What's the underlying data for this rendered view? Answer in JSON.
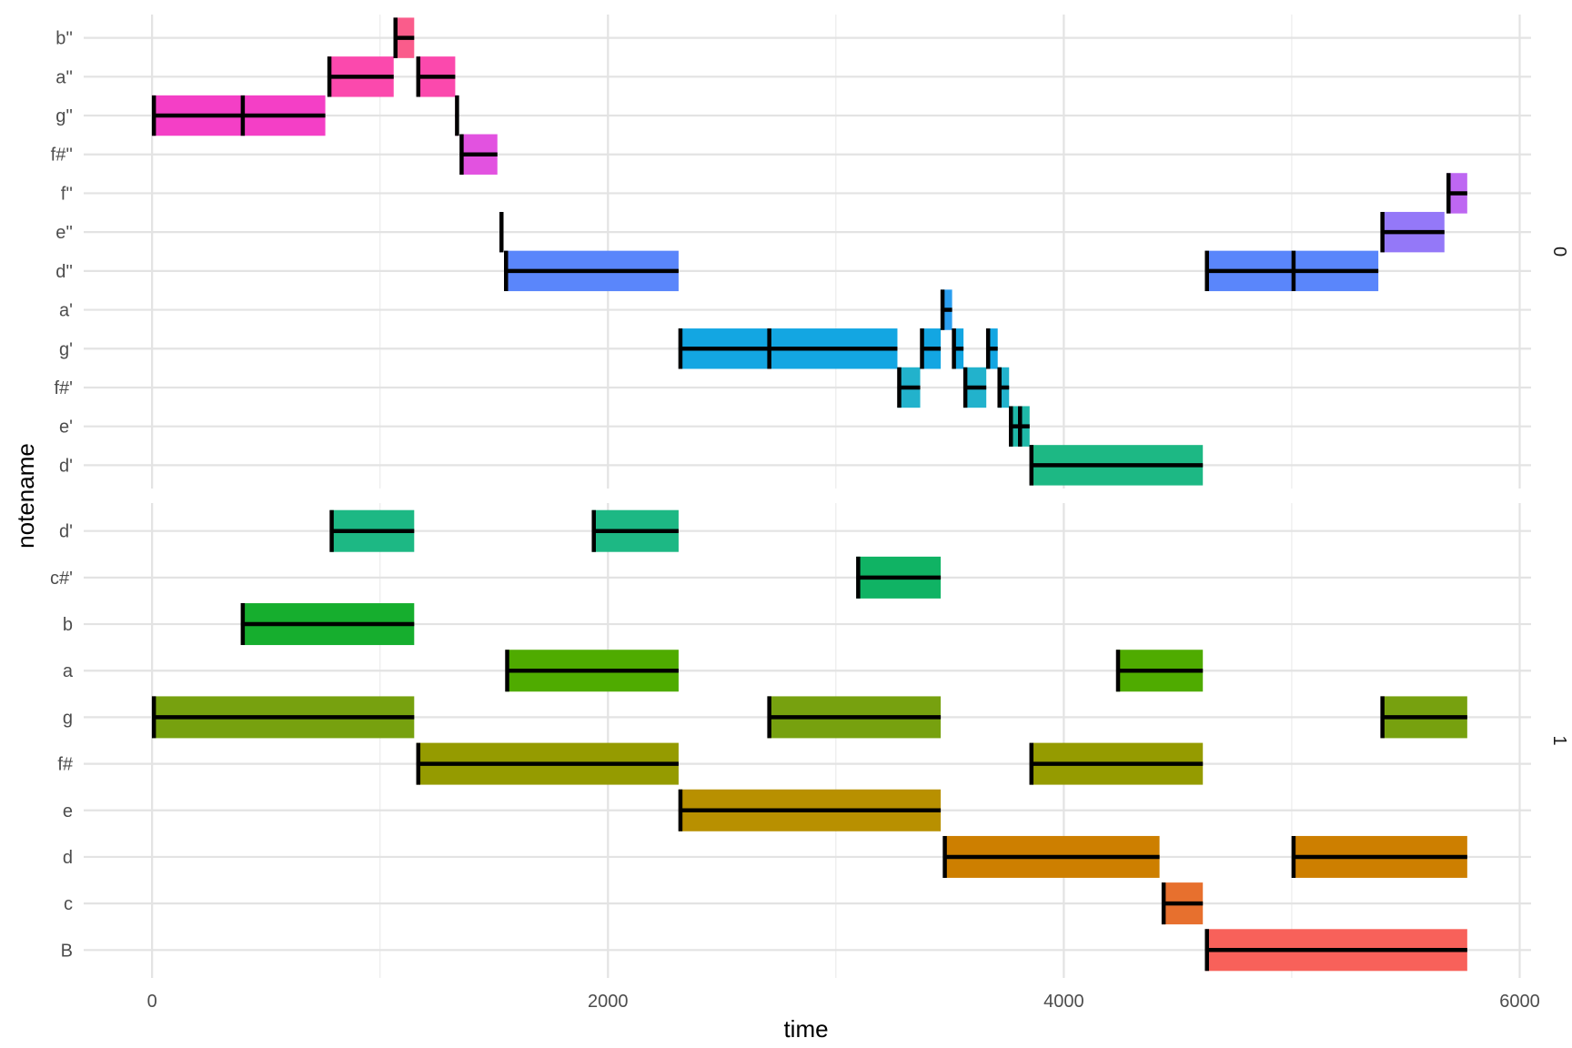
{
  "chart_data": {
    "type": "piano-roll",
    "xlabel": "time",
    "ylabel": "notename",
    "xlim": [
      -300,
      6050
    ],
    "xticks": [
      0,
      2000,
      4000,
      6000
    ],
    "xminor": [
      1000,
      3000,
      5000
    ],
    "grid": true,
    "facets": [
      {
        "strip": "0",
        "notes": [
          "d'",
          "e'",
          "f#'",
          "g'",
          "a'",
          "d''",
          "e''",
          "f''",
          "f#''",
          "g''",
          "a''",
          "b''"
        ],
        "colors": [
          "#1db884",
          "#1fb8a8",
          "#22b2cc",
          "#13a6e2",
          "#2a9ef0",
          "#5a86fb",
          "#9478f8",
          "#be67f2",
          "#e252e0",
          "#f43fc6",
          "#fb49ad",
          "#fa5c8b"
        ],
        "events": [
          {
            "note": "g''",
            "start": 0,
            "end": 760,
            "marks": [
              0,
              390
            ]
          },
          {
            "note": "a''",
            "start": 770,
            "end": 1060,
            "marks": [
              770
            ]
          },
          {
            "note": "b''",
            "start": 1060,
            "end": 1150,
            "marks": [
              1060
            ]
          },
          {
            "note": "a''",
            "start": 1160,
            "end": 1330,
            "marks": [
              1160
            ]
          },
          {
            "note": "g''",
            "start": 1330,
            "end": 1345,
            "marks": [
              1330
            ]
          },
          {
            "note": "f#''",
            "start": 1350,
            "end": 1515,
            "marks": [
              1350
            ]
          },
          {
            "note": "e''",
            "start": 1525,
            "end": 1535,
            "marks": [
              1525
            ]
          },
          {
            "note": "d''",
            "start": 1545,
            "end": 2310,
            "marks": [
              1545
            ]
          },
          {
            "note": "g'",
            "start": 2310,
            "end": 3270,
            "marks": [
              2310,
              2700
            ]
          },
          {
            "note": "f#'",
            "start": 3270,
            "end": 3370,
            "marks": [
              3270
            ]
          },
          {
            "note": "g'",
            "start": 3370,
            "end": 3460,
            "marks": [
              3370
            ]
          },
          {
            "note": "a'",
            "start": 3460,
            "end": 3510,
            "marks": [
              3460
            ]
          },
          {
            "note": "g'",
            "start": 3510,
            "end": 3560,
            "marks": [
              3510
            ]
          },
          {
            "note": "f#'",
            "start": 3560,
            "end": 3660,
            "marks": [
              3560
            ]
          },
          {
            "note": "g'",
            "start": 3660,
            "end": 3710,
            "marks": [
              3660
            ]
          },
          {
            "note": "f#'",
            "start": 3710,
            "end": 3760,
            "marks": [
              3710
            ]
          },
          {
            "note": "e'",
            "start": 3760,
            "end": 3850,
            "marks": [
              3760,
              3800
            ]
          },
          {
            "note": "d'",
            "start": 3850,
            "end": 4610,
            "marks": [
              3850
            ]
          },
          {
            "note": "d''",
            "start": 4620,
            "end": 5380,
            "marks": [
              4620,
              5000
            ]
          },
          {
            "note": "e''",
            "start": 5390,
            "end": 5670,
            "marks": [
              5390
            ]
          },
          {
            "note": "f''",
            "start": 5680,
            "end": 5770,
            "marks": [
              5680
            ]
          }
        ]
      },
      {
        "strip": "1",
        "notes": [
          "B",
          "c",
          "d",
          "e",
          "f#",
          "g",
          "a",
          "b",
          "c#'",
          "d'"
        ],
        "colors": [
          "#f8615a",
          "#e7702e",
          "#cd7f00",
          "#b89000",
          "#959b00",
          "#77a10f",
          "#4fab00",
          "#16ae2e",
          "#10b364",
          "#1db884"
        ],
        "events": [
          {
            "note": "g",
            "start": 0,
            "end": 1150,
            "marks": [
              0
            ]
          },
          {
            "note": "b",
            "start": 390,
            "end": 1150,
            "marks": [
              390
            ]
          },
          {
            "note": "d'",
            "start": 780,
            "end": 1150,
            "marks": [
              780
            ]
          },
          {
            "note": "f#",
            "start": 1160,
            "end": 2310,
            "marks": [
              1160
            ]
          },
          {
            "note": "a",
            "start": 1550,
            "end": 2310,
            "marks": [
              1550
            ]
          },
          {
            "note": "d'",
            "start": 1930,
            "end": 2310,
            "marks": [
              1930
            ]
          },
          {
            "note": "e",
            "start": 2310,
            "end": 3460,
            "marks": [
              2310
            ]
          },
          {
            "note": "g",
            "start": 2700,
            "end": 3460,
            "marks": [
              2700
            ]
          },
          {
            "note": "c#'",
            "start": 3090,
            "end": 3460,
            "marks": [
              3090
            ]
          },
          {
            "note": "d",
            "start": 3470,
            "end": 4420,
            "marks": [
              3470
            ]
          },
          {
            "note": "f#",
            "start": 3850,
            "end": 4610,
            "marks": [
              3850
            ]
          },
          {
            "note": "a",
            "start": 4230,
            "end": 4610,
            "marks": [
              4230
            ]
          },
          {
            "note": "c",
            "start": 4430,
            "end": 4610,
            "marks": [
              4430
            ]
          },
          {
            "note": "B",
            "start": 4620,
            "end": 5770,
            "marks": [
              4620
            ]
          },
          {
            "note": "d",
            "start": 5000,
            "end": 5770,
            "marks": [
              5000
            ]
          },
          {
            "note": "g",
            "start": 5390,
            "end": 5770,
            "marks": [
              5390
            ]
          }
        ]
      }
    ]
  }
}
